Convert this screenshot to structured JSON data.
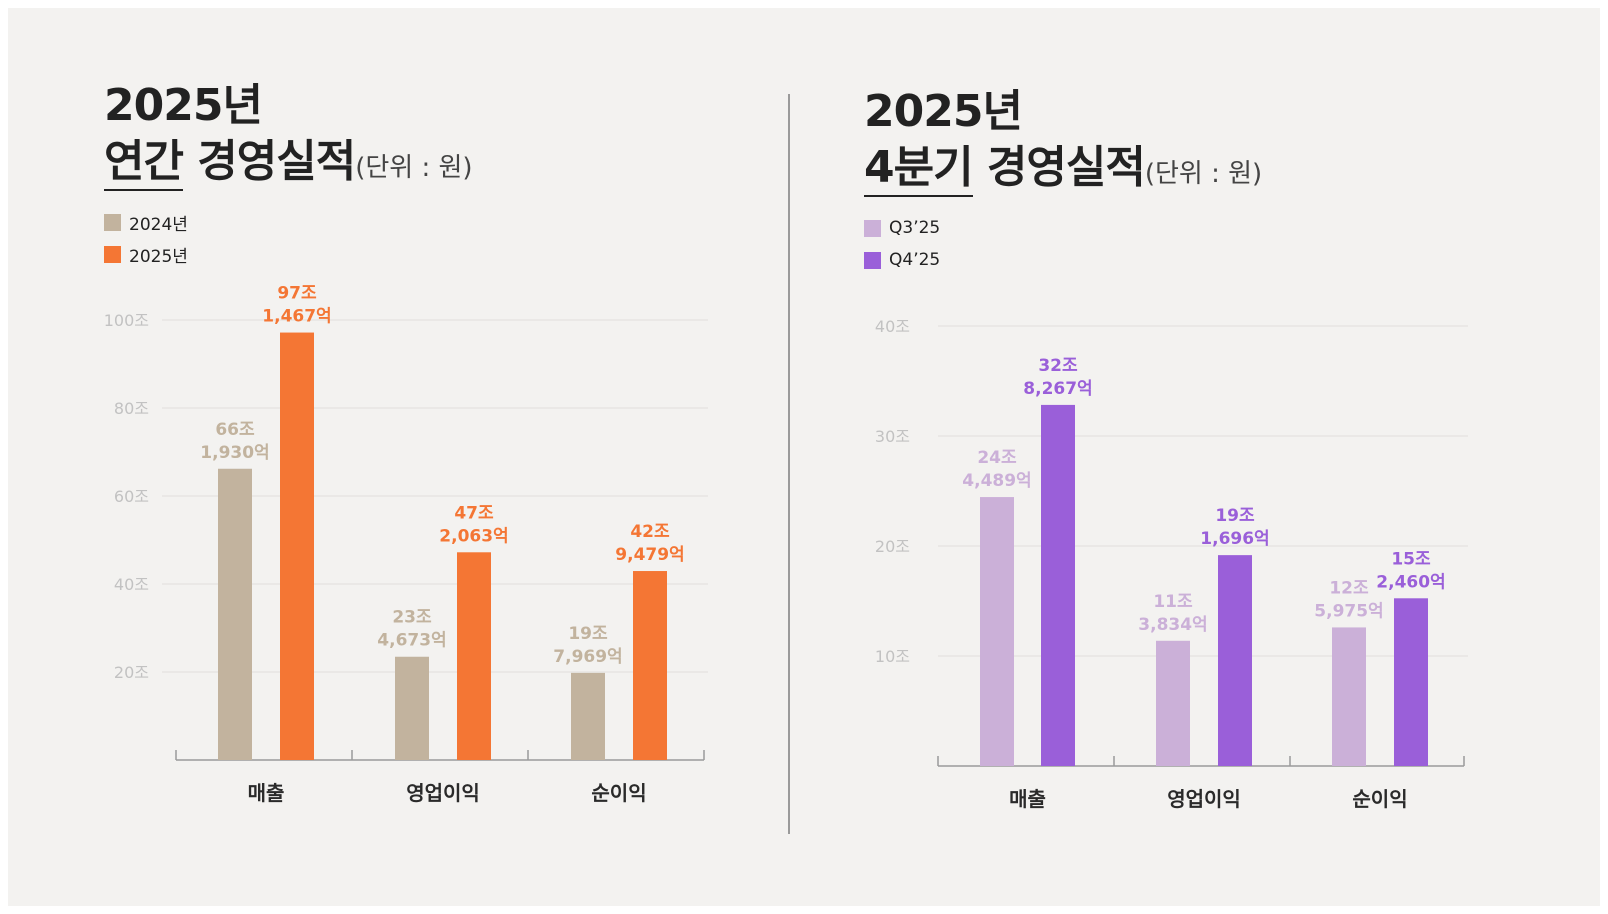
{
  "colors": {
    "annual_2024": "#c2b39e",
    "annual_2025": "#f47634",
    "q3_25": "#cbb0d8",
    "q4_25": "#9a5fd9",
    "grid": "#e0dedb",
    "axis": "#9a9a9a"
  },
  "annual": {
    "title_line1": "2025년",
    "title_emph": "연간",
    "title_rest": " 경영실적",
    "unit": "(단위 : 원)",
    "legend": [
      "2024년",
      "2025년"
    ]
  },
  "quarter": {
    "title_line1": "2025년",
    "title_emph": "4분기",
    "title_rest": " 경영실적",
    "unit": "(단위 : 원)",
    "legend": [
      "Q3’25",
      "Q4’25"
    ]
  },
  "chart_data": [
    {
      "type": "bar",
      "title": "",
      "categories": [
        "매출",
        "영업이익",
        "순이익"
      ],
      "ylim": [
        0,
        100
      ],
      "yticks": [
        20,
        40,
        60,
        80,
        100
      ],
      "ytick_labels": [
        "20조",
        "40조",
        "60조",
        "80조",
        "100조"
      ],
      "grid": true,
      "legend_position": "top-left",
      "series": [
        {
          "name": "2024년",
          "values": [
            66.193,
            23.4673,
            19.7969
          ],
          "labels": [
            [
              "66조",
              "1,930억"
            ],
            [
              "23조",
              "4,673억"
            ],
            [
              "19조",
              "7,969억"
            ]
          ]
        },
        {
          "name": "2025년",
          "values": [
            97.1467,
            47.2063,
            42.9479
          ],
          "labels": [
            [
              "97조",
              "1,467억"
            ],
            [
              "47조",
              "2,063억"
            ],
            [
              "42조",
              "9,479억"
            ]
          ]
        }
      ]
    },
    {
      "type": "bar",
      "title": "",
      "categories": [
        "매출",
        "영업이익",
        "순이익"
      ],
      "ylim": [
        0,
        40
      ],
      "yticks": [
        10,
        20,
        30,
        40
      ],
      "ytick_labels": [
        "10조",
        "20조",
        "30조",
        "40조"
      ],
      "grid": true,
      "legend_position": "top-left",
      "series": [
        {
          "name": "Q3’25",
          "values": [
            24.4489,
            11.3834,
            12.5975
          ],
          "labels": [
            [
              "24조",
              "4,489억"
            ],
            [
              "11조",
              "3,834억"
            ],
            [
              "12조",
              "5,975억"
            ]
          ]
        },
        {
          "name": "Q4’25",
          "values": [
            32.8267,
            19.1696,
            15.246
          ],
          "labels": [
            [
              "32조",
              "8,267억"
            ],
            [
              "19조",
              "1,696억"
            ],
            [
              "15조",
              "2,460억"
            ]
          ]
        }
      ]
    }
  ]
}
